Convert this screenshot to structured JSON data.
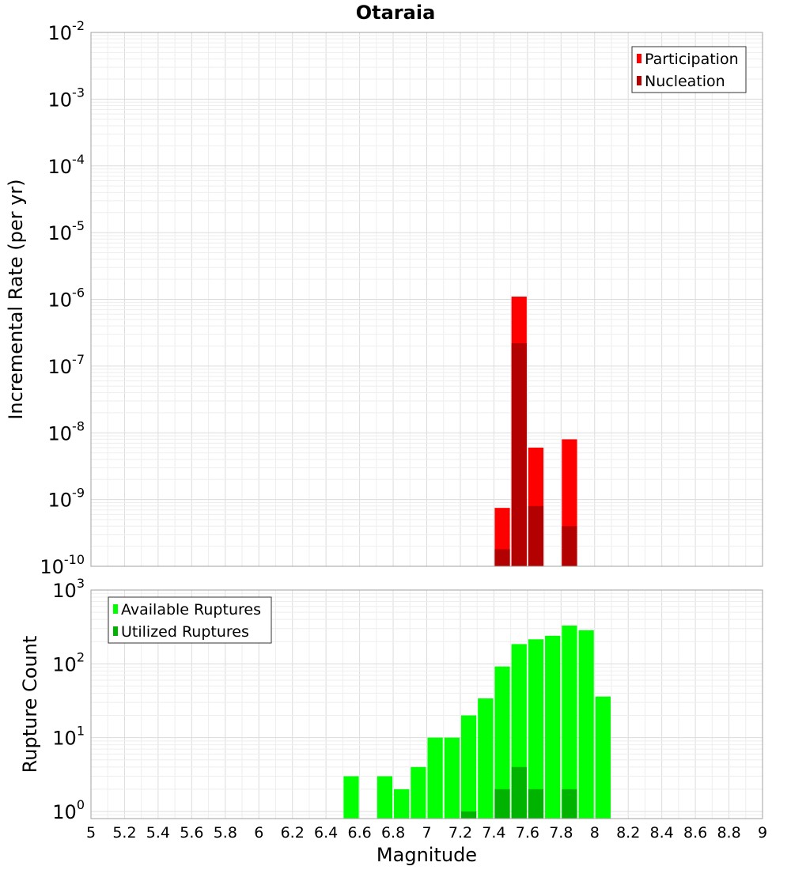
{
  "chart_data": [
    {
      "type": "bar",
      "title": "Otaraia",
      "xlabel": "",
      "ylabel": "Incremental Rate (per yr)",
      "yscale": "log",
      "ylim": [
        1e-10,
        0.01
      ],
      "xlim": [
        5,
        9
      ],
      "grid": true,
      "legend_position": "top-right",
      "y_ticks": [
        {
          "base": "10",
          "exp": "-2",
          "value": 0.01
        },
        {
          "base": "10",
          "exp": "-3",
          "value": 0.001
        },
        {
          "base": "10",
          "exp": "-4",
          "value": 0.0001
        },
        {
          "base": "10",
          "exp": "-5",
          "value": 1e-05
        },
        {
          "base": "10",
          "exp": "-6",
          "value": 1e-06
        },
        {
          "base": "10",
          "exp": "-7",
          "value": 1e-07
        },
        {
          "base": "10",
          "exp": "-8",
          "value": 1e-08
        },
        {
          "base": "10",
          "exp": "-9",
          "value": 1e-09
        },
        {
          "base": "10",
          "exp": "-10",
          "value": 1e-10
        }
      ],
      "series": [
        {
          "name": "Participation",
          "color": "#ff0000",
          "points": [
            [
              7.45,
              7.5e-10
            ],
            [
              7.55,
              1.1e-06
            ],
            [
              7.65,
              6e-09
            ],
            [
              7.85,
              8e-09
            ]
          ]
        },
        {
          "name": "Nucleation",
          "color": "#b30000",
          "points": [
            [
              7.45,
              1.8e-10
            ],
            [
              7.55,
              2.2e-07
            ],
            [
              7.65,
              8e-10
            ],
            [
              7.85,
              4e-10
            ]
          ]
        }
      ]
    },
    {
      "type": "bar",
      "title": "",
      "xlabel": "Magnitude",
      "ylabel": "Rupture Count",
      "yscale": "log",
      "ylim": [
        0.8,
        1000
      ],
      "xlim": [
        5,
        9
      ],
      "grid": true,
      "legend_position": "top-left",
      "x_ticks": [
        "5",
        "5.2",
        "5.4",
        "5.6",
        "5.8",
        "6",
        "6.2",
        "6.4",
        "6.6",
        "6.8",
        "7",
        "7.2",
        "7.4",
        "7.6",
        "7.8",
        "8",
        "8.2",
        "8.4",
        "8.6",
        "8.8",
        "9"
      ],
      "y_ticks": [
        {
          "base": "10",
          "exp": "3",
          "value": 1000
        },
        {
          "base": "10",
          "exp": "2",
          "value": 100
        },
        {
          "base": "10",
          "exp": "1",
          "value": 10
        },
        {
          "base": "10",
          "exp": "0",
          "value": 1
        }
      ],
      "series": [
        {
          "name": "Available Ruptures",
          "color": "#00ff00",
          "points": [
            [
              6.55,
              3
            ],
            [
              6.75,
              3
            ],
            [
              6.85,
              2
            ],
            [
              6.95,
              4
            ],
            [
              7.05,
              10
            ],
            [
              7.15,
              10
            ],
            [
              7.25,
              20
            ],
            [
              7.35,
              34
            ],
            [
              7.45,
              92
            ],
            [
              7.55,
              185
            ],
            [
              7.65,
              215
            ],
            [
              7.75,
              240
            ],
            [
              7.85,
              330
            ],
            [
              7.95,
              285
            ],
            [
              8.05,
              36
            ]
          ]
        },
        {
          "name": "Utilized Ruptures",
          "color": "#00b300",
          "points": [
            [
              7.25,
              1
            ],
            [
              7.45,
              2
            ],
            [
              7.55,
              4
            ],
            [
              7.65,
              2
            ],
            [
              7.85,
              2
            ]
          ]
        }
      ]
    }
  ]
}
